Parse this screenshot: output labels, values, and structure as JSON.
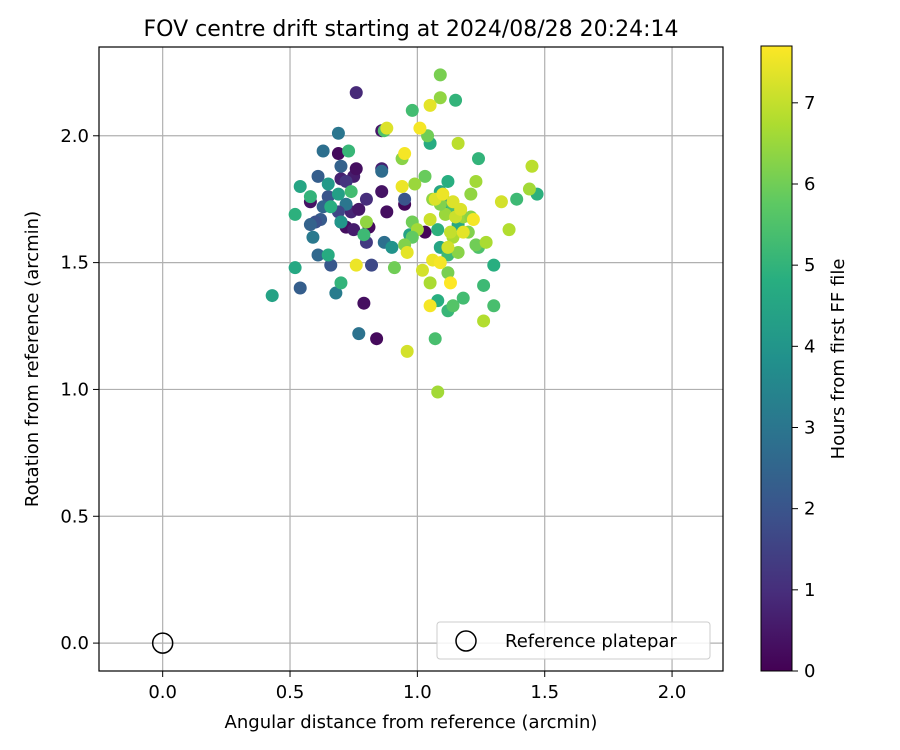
{
  "chart_data": {
    "type": "scatter",
    "title": "FOV centre drift starting at 2024/08/28 20:24:14",
    "xlabel": "Angular distance from reference (arcmin)",
    "ylabel": "Rotation from reference (arcmin)",
    "xlim": [
      -0.25,
      2.2
    ],
    "ylim": [
      -0.11,
      2.35
    ],
    "xticks": [
      "0.0",
      "0.5",
      "1.0",
      "1.5",
      "2.0"
    ],
    "yticks": [
      "0.0",
      "0.5",
      "1.0",
      "1.5",
      "2.0"
    ],
    "grid": true,
    "colorbar": {
      "label": "Hours from first FF file",
      "range": [
        0,
        7.7
      ],
      "ticks": [
        "0",
        "1",
        "2",
        "3",
        "4",
        "5",
        "6",
        "7"
      ],
      "colormap": "viridis"
    },
    "legend": {
      "placement": "lower-right",
      "entries": [
        "Reference platepar"
      ]
    },
    "reference_point": {
      "x": 0.0,
      "y": 0.0
    },
    "points": [
      {
        "x": 0.76,
        "y": 2.17,
        "h": 0.9
      },
      {
        "x": 0.69,
        "y": 1.93,
        "h": 0.2
      },
      {
        "x": 0.75,
        "y": 1.84,
        "h": 0.6
      },
      {
        "x": 0.76,
        "y": 1.87,
        "h": 0.3
      },
      {
        "x": 0.7,
        "y": 1.83,
        "h": 0.7
      },
      {
        "x": 0.72,
        "y": 1.82,
        "h": 1.2
      },
      {
        "x": 0.58,
        "y": 1.74,
        "h": 0.4
      },
      {
        "x": 0.74,
        "y": 1.7,
        "h": 0.8
      },
      {
        "x": 0.77,
        "y": 1.71,
        "h": 0.5
      },
      {
        "x": 0.8,
        "y": 1.75,
        "h": 1.0
      },
      {
        "x": 0.72,
        "y": 1.64,
        "h": 0.3
      },
      {
        "x": 0.75,
        "y": 1.63,
        "h": 0.6
      },
      {
        "x": 0.81,
        "y": 1.64,
        "h": 0.2
      },
      {
        "x": 0.86,
        "y": 1.78,
        "h": 0.4
      },
      {
        "x": 0.88,
        "y": 1.7,
        "h": 0.3
      },
      {
        "x": 0.95,
        "y": 1.73,
        "h": 0.1
      },
      {
        "x": 0.86,
        "y": 1.87,
        "h": 0.7
      },
      {
        "x": 0.86,
        "y": 2.02,
        "h": 0.5
      },
      {
        "x": 0.79,
        "y": 1.34,
        "h": 0.3
      },
      {
        "x": 0.84,
        "y": 1.2,
        "h": 0.2
      },
      {
        "x": 0.8,
        "y": 1.58,
        "h": 1.3
      },
      {
        "x": 0.82,
        "y": 1.49,
        "h": 1.7
      },
      {
        "x": 1.03,
        "y": 1.62,
        "h": 0.1
      },
      {
        "x": 0.7,
        "y": 1.66,
        "h": 1.5
      },
      {
        "x": 0.69,
        "y": 2.01,
        "h": 3.0
      },
      {
        "x": 0.63,
        "y": 1.94,
        "h": 2.8
      },
      {
        "x": 0.61,
        "y": 1.84,
        "h": 2.3
      },
      {
        "x": 0.65,
        "y": 1.76,
        "h": 2.0
      },
      {
        "x": 0.63,
        "y": 1.72,
        "h": 2.5
      },
      {
        "x": 0.62,
        "y": 1.67,
        "h": 2.2
      },
      {
        "x": 0.6,
        "y": 1.66,
        "h": 1.9
      },
      {
        "x": 0.58,
        "y": 1.65,
        "h": 2.4
      },
      {
        "x": 0.59,
        "y": 1.6,
        "h": 3.1
      },
      {
        "x": 0.61,
        "y": 1.53,
        "h": 2.6
      },
      {
        "x": 0.66,
        "y": 1.49,
        "h": 2.1
      },
      {
        "x": 0.54,
        "y": 1.4,
        "h": 2.3
      },
      {
        "x": 0.68,
        "y": 1.38,
        "h": 3.2
      },
      {
        "x": 0.77,
        "y": 1.22,
        "h": 2.9
      },
      {
        "x": 0.86,
        "y": 1.86,
        "h": 2.7
      },
      {
        "x": 0.87,
        "y": 1.58,
        "h": 2.8
      },
      {
        "x": 0.95,
        "y": 1.75,
        "h": 2.0
      },
      {
        "x": 0.7,
        "y": 1.88,
        "h": 2.4
      },
      {
        "x": 0.72,
        "y": 1.73,
        "h": 3.0
      },
      {
        "x": 0.69,
        "y": 1.7,
        "h": 1.6
      },
      {
        "x": 0.43,
        "y": 1.37,
        "h": 4.4
      },
      {
        "x": 0.52,
        "y": 1.48,
        "h": 4.6
      },
      {
        "x": 0.52,
        "y": 1.69,
        "h": 4.9
      },
      {
        "x": 0.54,
        "y": 1.8,
        "h": 4.5
      },
      {
        "x": 0.58,
        "y": 1.76,
        "h": 5.0
      },
      {
        "x": 0.65,
        "y": 1.81,
        "h": 4.1
      },
      {
        "x": 0.66,
        "y": 1.72,
        "h": 4.8
      },
      {
        "x": 0.69,
        "y": 1.77,
        "h": 4.3
      },
      {
        "x": 0.7,
        "y": 1.66,
        "h": 4.0
      },
      {
        "x": 0.73,
        "y": 1.94,
        "h": 5.1
      },
      {
        "x": 0.74,
        "y": 1.78,
        "h": 5.3
      },
      {
        "x": 0.79,
        "y": 1.61,
        "h": 5.2
      },
      {
        "x": 0.65,
        "y": 1.53,
        "h": 4.7
      },
      {
        "x": 0.7,
        "y": 1.42,
        "h": 5.0
      },
      {
        "x": 0.9,
        "y": 1.56,
        "h": 3.9
      },
      {
        "x": 0.97,
        "y": 1.61,
        "h": 4.4
      },
      {
        "x": 1.05,
        "y": 1.97,
        "h": 4.7
      },
      {
        "x": 1.09,
        "y": 1.56,
        "h": 4.5
      },
      {
        "x": 1.08,
        "y": 1.63,
        "h": 4.9
      },
      {
        "x": 1.11,
        "y": 1.74,
        "h": 4.2
      },
      {
        "x": 1.14,
        "y": 1.72,
        "h": 5.4
      },
      {
        "x": 1.15,
        "y": 2.14,
        "h": 5.0
      },
      {
        "x": 1.12,
        "y": 1.53,
        "h": 5.2
      },
      {
        "x": 1.16,
        "y": 1.65,
        "h": 4.6
      },
      {
        "x": 1.12,
        "y": 1.31,
        "h": 5.1
      },
      {
        "x": 1.14,
        "y": 1.33,
        "h": 5.6
      },
      {
        "x": 1.18,
        "y": 1.36,
        "h": 5.3
      },
      {
        "x": 1.08,
        "y": 1.35,
        "h": 4.8
      },
      {
        "x": 1.07,
        "y": 1.2,
        "h": 5.4
      },
      {
        "x": 1.24,
        "y": 1.56,
        "h": 5.5
      },
      {
        "x": 1.24,
        "y": 1.91,
        "h": 5.0
      },
      {
        "x": 1.26,
        "y": 1.41,
        "h": 5.2
      },
      {
        "x": 1.3,
        "y": 1.33,
        "h": 5.4
      },
      {
        "x": 1.3,
        "y": 1.49,
        "h": 4.8
      },
      {
        "x": 1.39,
        "y": 1.75,
        "h": 5.2
      },
      {
        "x": 1.47,
        "y": 1.77,
        "h": 4.9
      },
      {
        "x": 0.98,
        "y": 2.1,
        "h": 5.3
      },
      {
        "x": 0.87,
        "y": 2.02,
        "h": 5.5
      },
      {
        "x": 1.12,
        "y": 1.82,
        "h": 4.8
      },
      {
        "x": 1.09,
        "y": 1.78,
        "h": 4.5
      },
      {
        "x": 1.09,
        "y": 2.24,
        "h": 6.1
      },
      {
        "x": 1.09,
        "y": 2.15,
        "h": 6.4
      },
      {
        "x": 1.04,
        "y": 2.0,
        "h": 6.0
      },
      {
        "x": 1.03,
        "y": 1.84,
        "h": 5.9
      },
      {
        "x": 0.99,
        "y": 1.81,
        "h": 6.5
      },
      {
        "x": 0.94,
        "y": 1.91,
        "h": 6.3
      },
      {
        "x": 0.98,
        "y": 1.66,
        "h": 6.0
      },
      {
        "x": 1.0,
        "y": 1.63,
        "h": 6.6
      },
      {
        "x": 0.98,
        "y": 1.6,
        "h": 5.8
      },
      {
        "x": 0.95,
        "y": 1.57,
        "h": 6.2
      },
      {
        "x": 0.91,
        "y": 1.48,
        "h": 6.0
      },
      {
        "x": 0.8,
        "y": 1.66,
        "h": 6.4
      },
      {
        "x": 1.05,
        "y": 1.42,
        "h": 6.7
      },
      {
        "x": 1.08,
        "y": 0.99,
        "h": 6.6
      },
      {
        "x": 1.12,
        "y": 1.46,
        "h": 6.1
      },
      {
        "x": 1.16,
        "y": 1.54,
        "h": 6.3
      },
      {
        "x": 1.18,
        "y": 1.68,
        "h": 6.5
      },
      {
        "x": 1.2,
        "y": 1.62,
        "h": 6.2
      },
      {
        "x": 1.21,
        "y": 1.77,
        "h": 6.4
      },
      {
        "x": 1.23,
        "y": 1.82,
        "h": 6.6
      },
      {
        "x": 1.23,
        "y": 1.57,
        "h": 6.0
      },
      {
        "x": 1.27,
        "y": 1.58,
        "h": 6.7
      },
      {
        "x": 1.26,
        "y": 1.27,
        "h": 6.8
      },
      {
        "x": 1.16,
        "y": 1.97,
        "h": 6.9
      },
      {
        "x": 1.11,
        "y": 1.69,
        "h": 6.5
      },
      {
        "x": 1.14,
        "y": 1.6,
        "h": 6.7
      },
      {
        "x": 1.36,
        "y": 1.63,
        "h": 6.8
      },
      {
        "x": 1.44,
        "y": 1.79,
        "h": 6.6
      },
      {
        "x": 1.45,
        "y": 1.88,
        "h": 6.9
      },
      {
        "x": 1.09,
        "y": 1.73,
        "h": 6.2
      },
      {
        "x": 1.21,
        "y": 1.68,
        "h": 6.3
      },
      {
        "x": 1.06,
        "y": 1.75,
        "h": 6.4
      },
      {
        "x": 0.88,
        "y": 2.03,
        "h": 7.3
      },
      {
        "x": 0.95,
        "y": 1.93,
        "h": 7.6
      },
      {
        "x": 0.94,
        "y": 1.8,
        "h": 7.5
      },
      {
        "x": 0.96,
        "y": 1.54,
        "h": 7.4
      },
      {
        "x": 0.96,
        "y": 1.15,
        "h": 7.2
      },
      {
        "x": 1.01,
        "y": 2.03,
        "h": 7.6
      },
      {
        "x": 1.05,
        "y": 2.12,
        "h": 7.4
      },
      {
        "x": 1.07,
        "y": 1.75,
        "h": 7.3
      },
      {
        "x": 1.05,
        "y": 1.67,
        "h": 7.1
      },
      {
        "x": 1.02,
        "y": 1.47,
        "h": 7.2
      },
      {
        "x": 1.06,
        "y": 1.51,
        "h": 7.5
      },
      {
        "x": 1.09,
        "y": 1.5,
        "h": 7.6
      },
      {
        "x": 1.13,
        "y": 1.42,
        "h": 7.7
      },
      {
        "x": 1.05,
        "y": 1.33,
        "h": 7.6
      },
      {
        "x": 1.1,
        "y": 1.77,
        "h": 7.5
      },
      {
        "x": 1.14,
        "y": 1.74,
        "h": 7.3
      },
      {
        "x": 1.12,
        "y": 1.56,
        "h": 7.2
      },
      {
        "x": 1.18,
        "y": 1.62,
        "h": 7.4
      },
      {
        "x": 1.22,
        "y": 1.67,
        "h": 7.6
      },
      {
        "x": 1.33,
        "y": 1.74,
        "h": 7.2
      },
      {
        "x": 0.76,
        "y": 1.49,
        "h": 7.5
      },
      {
        "x": 1.15,
        "y": 1.68,
        "h": 7.1
      },
      {
        "x": 1.13,
        "y": 1.62,
        "h": 7.0
      },
      {
        "x": 1.17,
        "y": 1.71,
        "h": 7.3
      }
    ]
  }
}
